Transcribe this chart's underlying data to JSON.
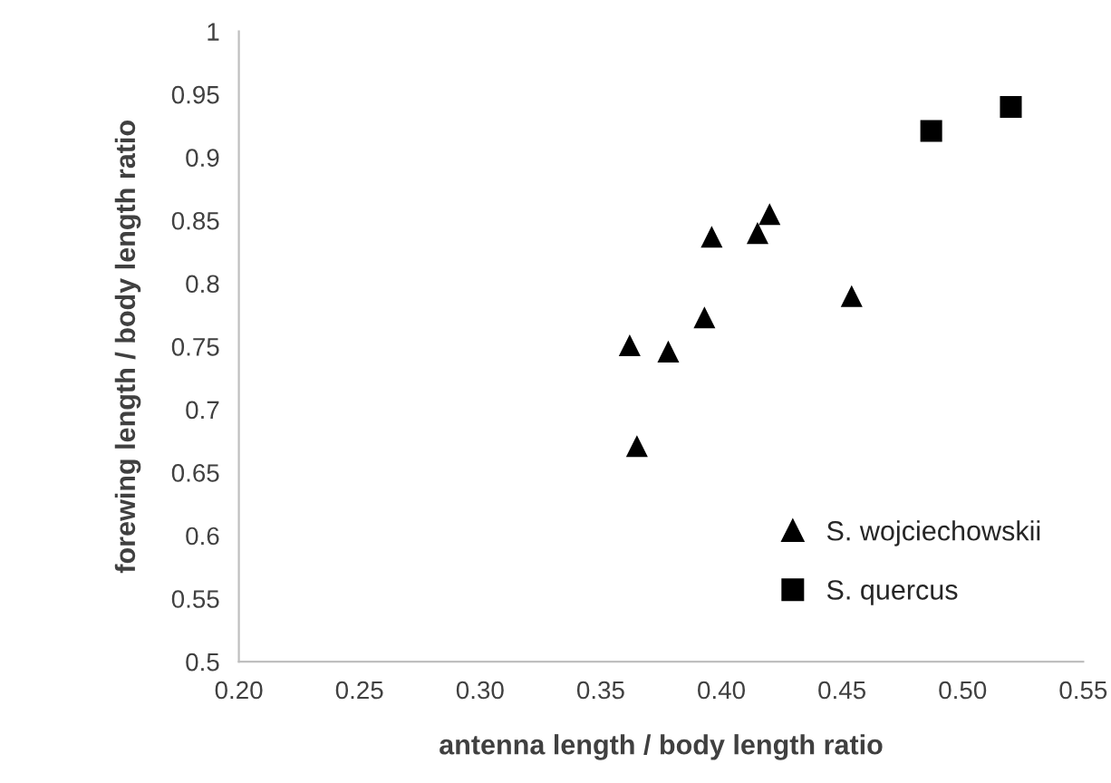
{
  "chart_data": {
    "type": "scatter",
    "xlabel": "antenna length / body length ratio",
    "ylabel": "forewing length / body length ratio",
    "series": [
      {
        "name": "S. wojciechowskii",
        "color": "#000000",
        "marker": "triangle",
        "x": [
          0.362,
          0.378,
          0.365,
          0.393,
          0.396,
          0.415,
          0.42,
          0.454
        ],
        "values": [
          0.751,
          0.746,
          0.671,
          0.773,
          0.837,
          0.84,
          0.855,
          0.79
        ]
      },
      {
        "name": "S. quercus",
        "color": "#000000",
        "marker": "square",
        "x": [
          0.487,
          0.52
        ],
        "values": [
          0.921,
          0.94
        ]
      }
    ],
    "xlim": [
      0.2,
      0.55
    ],
    "xticks": [
      {
        "value": 0.2,
        "label": "0.20"
      },
      {
        "value": 0.25,
        "label": "0.25"
      },
      {
        "value": 0.3,
        "label": "0.30"
      },
      {
        "value": 0.35,
        "label": "0.35"
      },
      {
        "value": 0.4,
        "label": "0.40"
      },
      {
        "value": 0.45,
        "label": "0.45"
      },
      {
        "value": 0.5,
        "label": "0.50"
      },
      {
        "value": 0.55,
        "label": "0.55"
      }
    ],
    "ylim": [
      0.5,
      1
    ],
    "yticks": [
      0.5,
      0.55,
      0.6,
      0.65,
      0.7,
      0.75,
      0.8,
      0.85,
      0.9,
      0.95,
      1
    ],
    "grid": false,
    "legend": "bottom right"
  }
}
